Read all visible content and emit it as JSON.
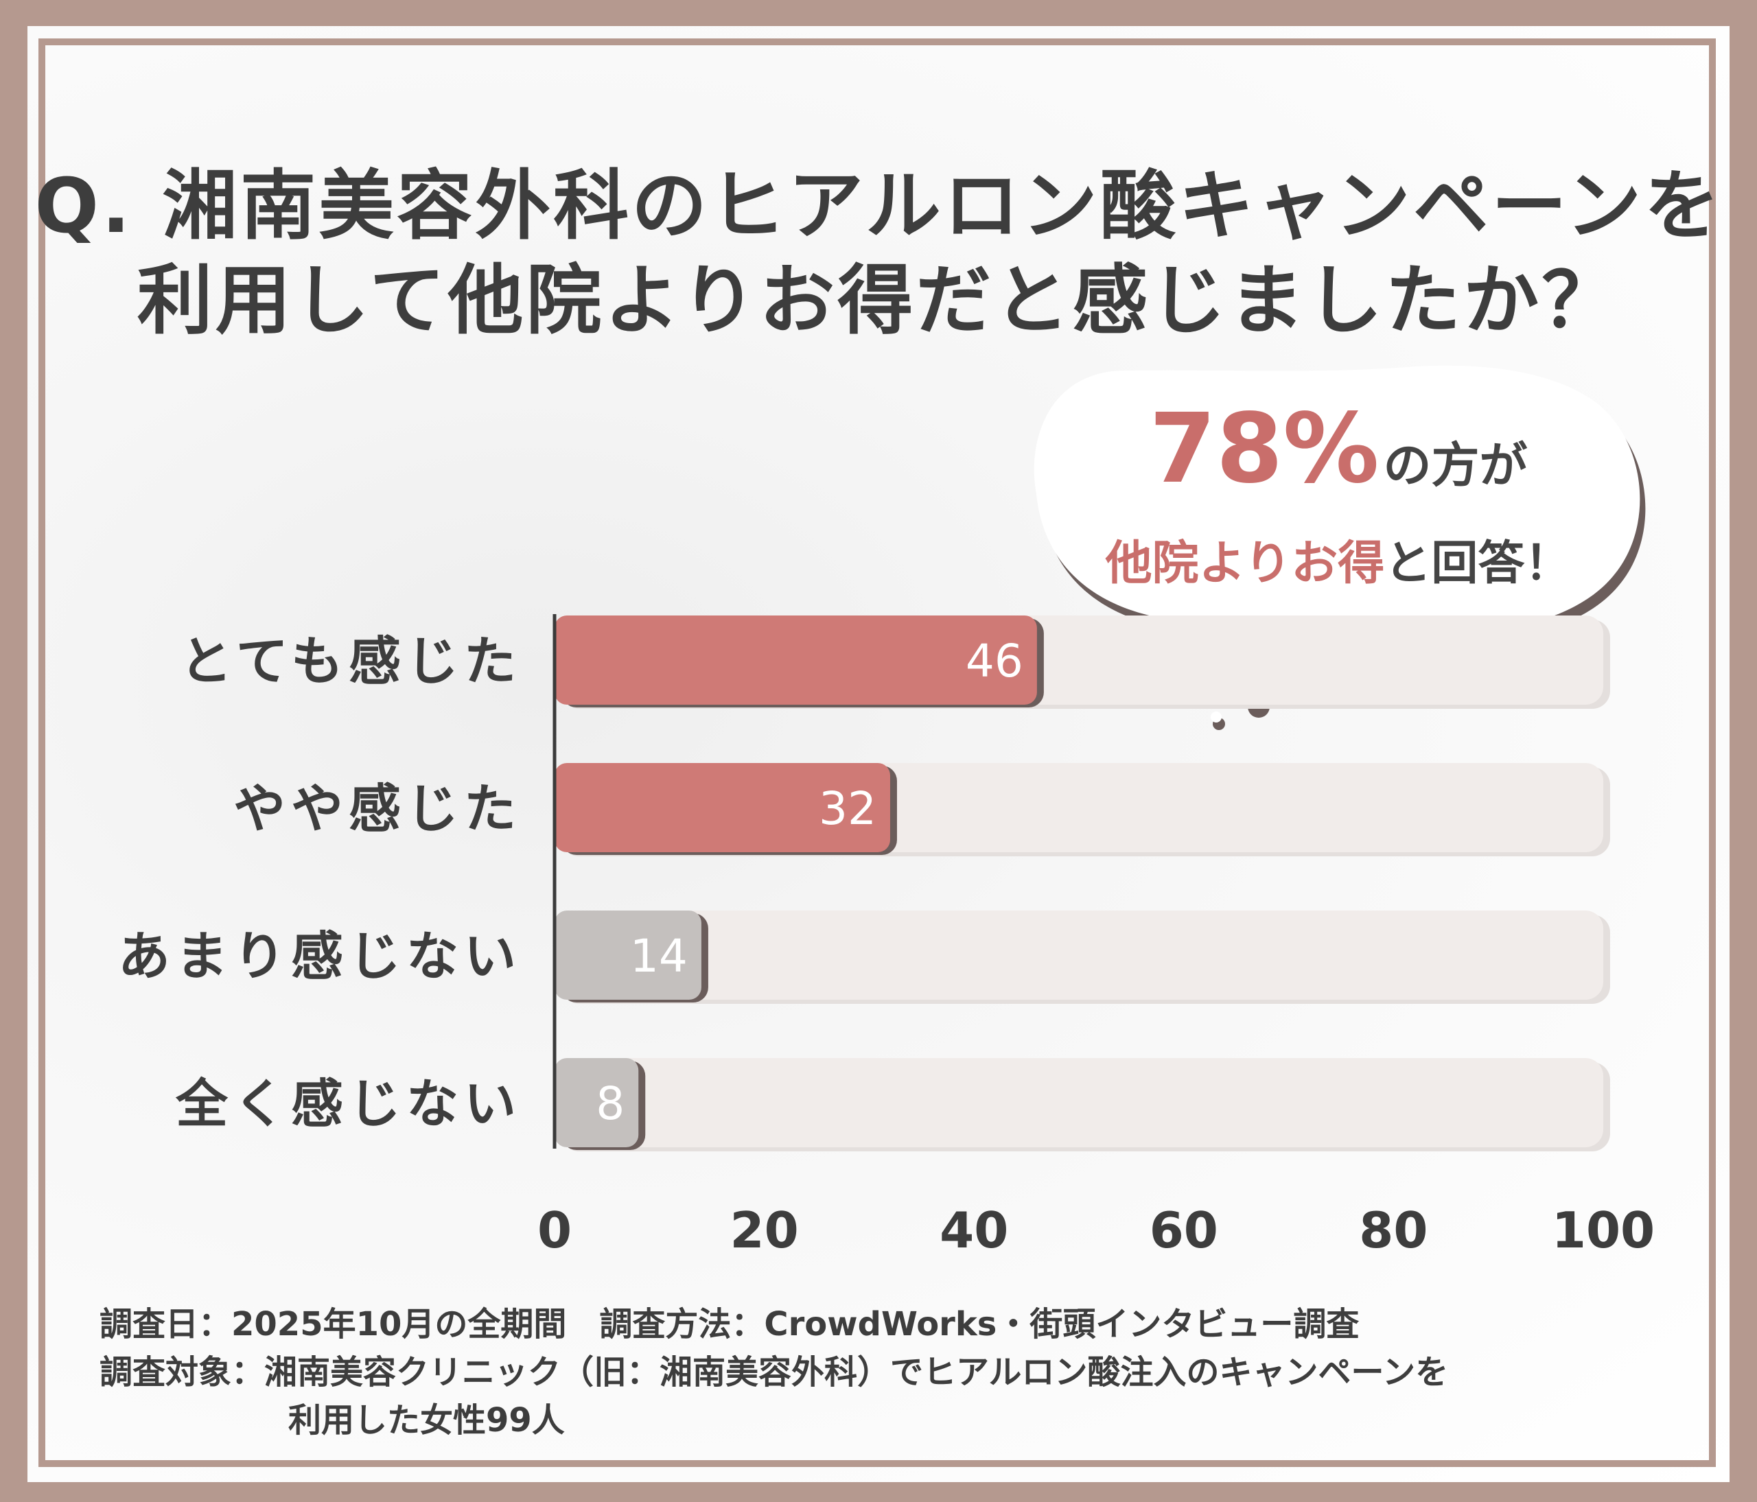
{
  "title": {
    "line1": "Q. 湘南美容外科のヒアルロン酸キャンペーンを",
    "line2": "利用して他院よりお得だと感じましたか？"
  },
  "callout": {
    "percent": "78%",
    "line1_rest": "の方が",
    "line2_accent": "他院よりお得",
    "line2_rest": "と回答！"
  },
  "chart_data": {
    "type": "bar",
    "orientation": "horizontal",
    "categories": [
      "とても感じた",
      "やや感じた",
      "あまり感じない",
      "全く感じない"
    ],
    "values": [
      46,
      32,
      14,
      8
    ],
    "xlim": [
      0,
      100
    ],
    "x_ticks": [
      "0",
      "20",
      "40",
      "60",
      "80",
      "100"
    ],
    "grid": false,
    "colors": {
      "positive": "#cf7a76",
      "negative": "#c4c0be",
      "track": "#f1ecea",
      "shadow": "#6b5d5b",
      "axis": "#3a3a3a"
    }
  },
  "notes": {
    "line1": "調査日：2025年10月の全期間　調査方法：CrowdWorks・街頭インタビュー調査",
    "line2": "調査対象：湘南美容クリニック（旧：湘南美容外科）でヒアルロン酸注入のキャンペーンを",
    "line3": "利用した女性99人"
  },
  "colors": {
    "frame": "#b5998f",
    "title_text": "#3d3d3d",
    "accent": "#c96e6b"
  }
}
